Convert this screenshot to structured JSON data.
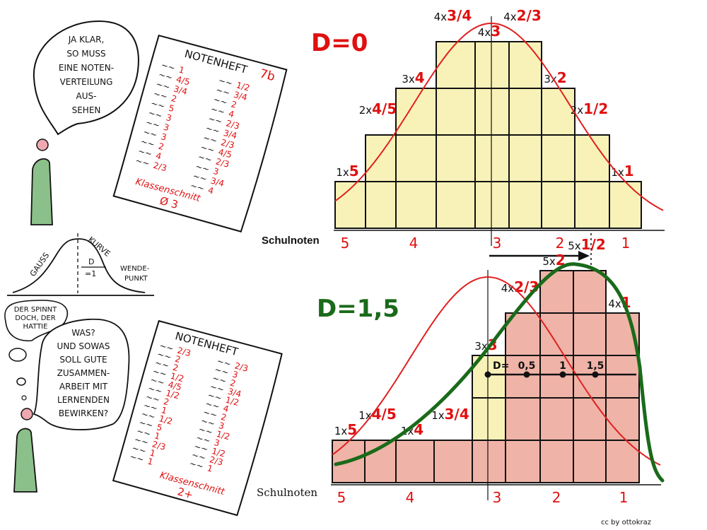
{
  "colors": {
    "grade_red": "#e01010",
    "gauss_red": "#e02020",
    "skew_green": "#1a6a1a",
    "bar_yellow": "#f5eda0",
    "bar_red": "#e99a8a",
    "figure_green": "#8cc08a",
    "head_pink": "#f0a8b0"
  },
  "top_figure": {
    "speech": [
      "JA KLAR,",
      "SO MUSS",
      "EINE NOTEN-",
      "VERTEILUNG",
      "AUS-",
      "SEHEN"
    ]
  },
  "notebook_top": {
    "title": "NOTENHEFT",
    "class_label": "7b",
    "left_grades": [
      "1",
      "4/5",
      "3/4",
      "2",
      "5",
      "3",
      "3",
      "3",
      "2",
      "4",
      "2/3"
    ],
    "right_grades": [
      "1/2",
      "3/4",
      "2",
      "4",
      "2/3",
      "3/4",
      "2/3",
      "4/5",
      "2/3",
      "3",
      "3/4",
      "4"
    ],
    "average_label": "Klassenschnitt",
    "average_value": "Ø 3"
  },
  "gauss_sketch": {
    "left_label": "GAUSS",
    "right_label": "KURVE",
    "d_label": "D",
    "d_value": "=1",
    "inflection_label_1": "WENDE-",
    "inflection_label_2": "PUNKT"
  },
  "bottom_figure": {
    "thought": [
      "DER SPINNT",
      "DOCH, DER",
      "HATTIE"
    ],
    "speech": [
      "WAS?",
      "UND SOWAS",
      "SOLL GUTE",
      "ZUSAMMEN-",
      "ARBEIT MIT",
      "LERNENDEN",
      "BEWIRKEN?"
    ]
  },
  "notebook_bottom": {
    "title": "NOTENHEFT",
    "left_grades": [
      "2/3",
      "2",
      "2",
      "1/2",
      "4/5",
      "1/2",
      "2",
      "1",
      "1/2",
      "5",
      "1",
      "2/3",
      "1",
      "1"
    ],
    "right_grades": [
      "2/3",
      "3",
      "2",
      "3/4",
      "1/2",
      "4",
      "2",
      "3",
      "1/2",
      "3",
      "1/2",
      "2/3",
      "1"
    ],
    "average_label": "Klassenschnitt",
    "average_value": "2+"
  },
  "chart_data": [
    {
      "type": "bar",
      "title": "D=0",
      "xlabel": "Schulnoten",
      "x_ticks": [
        "5",
        "4",
        "3",
        "2",
        "1"
      ],
      "categories": [
        "5",
        "4/5",
        "4",
        "3/4",
        "3",
        "2/3",
        "2",
        "1/2",
        "1"
      ],
      "values": [
        1,
        2,
        3,
        4,
        4,
        4,
        3,
        2,
        1
      ],
      "overlay": "normal curve centred on 3",
      "d_arrow": {
        "from": "3",
        "to_label": "D=1 (Wendepunkt)"
      }
    },
    {
      "type": "bar",
      "title": "D=1,5",
      "xlabel": "Schulnoten",
      "x_ticks": [
        "5",
        "4",
        "3",
        "2",
        "1"
      ],
      "categories": [
        "5",
        "4/5",
        "4",
        "3/4",
        "3",
        "2/3",
        "2",
        "1/2",
        "1"
      ],
      "values": [
        1,
        1,
        1,
        1,
        3,
        4,
        5,
        5,
        4
      ],
      "overlay": "normal curve (red) and shifted skewed curve (green)",
      "d_scale": {
        "prefix": "D=",
        "marks": [
          "0,5",
          "1",
          "1,5"
        ]
      }
    }
  ],
  "credit": "cc by ottokraz"
}
